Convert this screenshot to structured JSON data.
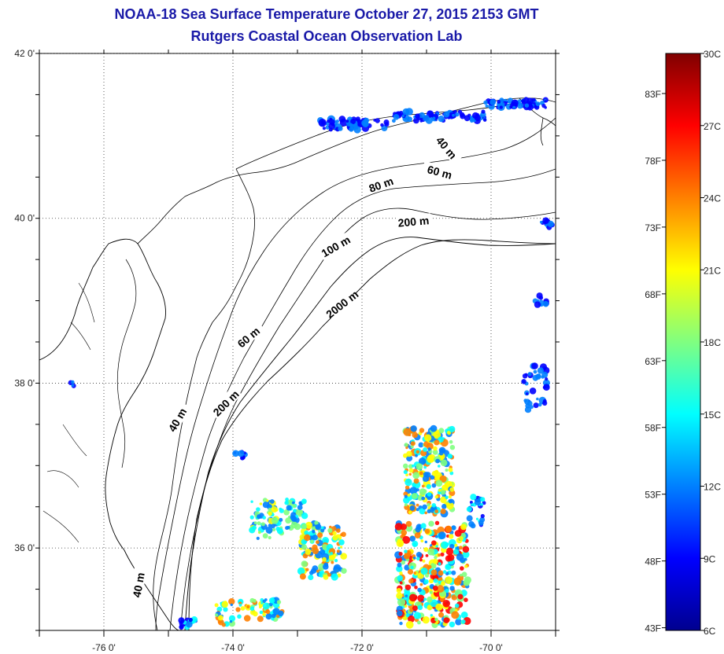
{
  "header": {
    "title_line1": "NOAA-18 Sea Surface Temperature October 27, 2015 2153 GMT",
    "title_line2": "Rutgers Coastal Ocean Observation Lab"
  },
  "map": {
    "lon_range": [
      -77.0,
      -69.0
    ],
    "lat_range": [
      35.0,
      42.0
    ],
    "lon_ticks": [
      {
        "value": -76,
        "label": "-76 0'"
      },
      {
        "value": -74,
        "label": "-74 0'"
      },
      {
        "value": -72,
        "label": "-72 0'"
      },
      {
        "value": -70,
        "label": "-70 0'"
      }
    ],
    "lat_ticks": [
      {
        "value": 42,
        "label": "42 0'"
      },
      {
        "value": 40,
        "label": "40 0'"
      },
      {
        "value": 38,
        "label": "38 0'"
      },
      {
        "value": 36,
        "label": "36 0'"
      }
    ],
    "grid": "dotted",
    "contour_labels": [
      {
        "text": "40 m",
        "lon": -70.7,
        "lat": 40.85,
        "angle": 50
      },
      {
        "text": "60 m",
        "lon": -70.8,
        "lat": 40.55,
        "angle": 15
      },
      {
        "text": "80 m",
        "lon": -71.7,
        "lat": 40.4,
        "angle": -20
      },
      {
        "text": "200 m",
        "lon": -71.2,
        "lat": 39.95,
        "angle": -5
      },
      {
        "text": "100 m",
        "lon": -72.4,
        "lat": 39.65,
        "angle": -30
      },
      {
        "text": "2000 m",
        "lon": -72.3,
        "lat": 38.95,
        "angle": -38
      },
      {
        "text": "60 m",
        "lon": -73.75,
        "lat": 38.55,
        "angle": -40
      },
      {
        "text": "200 m",
        "lon": -74.1,
        "lat": 37.75,
        "angle": -45
      },
      {
        "text": "40 m",
        "lon": -74.85,
        "lat": 37.55,
        "angle": -60
      },
      {
        "text": "40 m",
        "lon": -75.45,
        "lat": 35.55,
        "angle": -80
      }
    ]
  },
  "colorbar": {
    "celsius_labels": [
      {
        "value": 30,
        "label": "30C"
      },
      {
        "value": 27,
        "label": "27C"
      },
      {
        "value": 24,
        "label": "24C"
      },
      {
        "value": 21,
        "label": "21C"
      },
      {
        "value": 18,
        "label": "18C"
      },
      {
        "value": 15,
        "label": "15C"
      },
      {
        "value": 12,
        "label": "12C"
      },
      {
        "value": 9,
        "label": "9C"
      },
      {
        "value": 6,
        "label": "6C"
      }
    ],
    "fahrenheit_labels": [
      {
        "value": 83,
        "label": "83F"
      },
      {
        "value": 78,
        "label": "78F"
      },
      {
        "value": 73,
        "label": "73F"
      },
      {
        "value": 68,
        "label": "68F"
      },
      {
        "value": 63,
        "label": "63F"
      },
      {
        "value": 58,
        "label": "58F"
      },
      {
        "value": 53,
        "label": "53F"
      },
      {
        "value": 48,
        "label": "48F"
      },
      {
        "value": 43,
        "label": "43F"
      }
    ],
    "colors": [
      "#00008f",
      "#0000ff",
      "#0080ff",
      "#00ffff",
      "#80ff80",
      "#ffff00",
      "#ff8000",
      "#ff0000",
      "#800000"
    ]
  }
}
